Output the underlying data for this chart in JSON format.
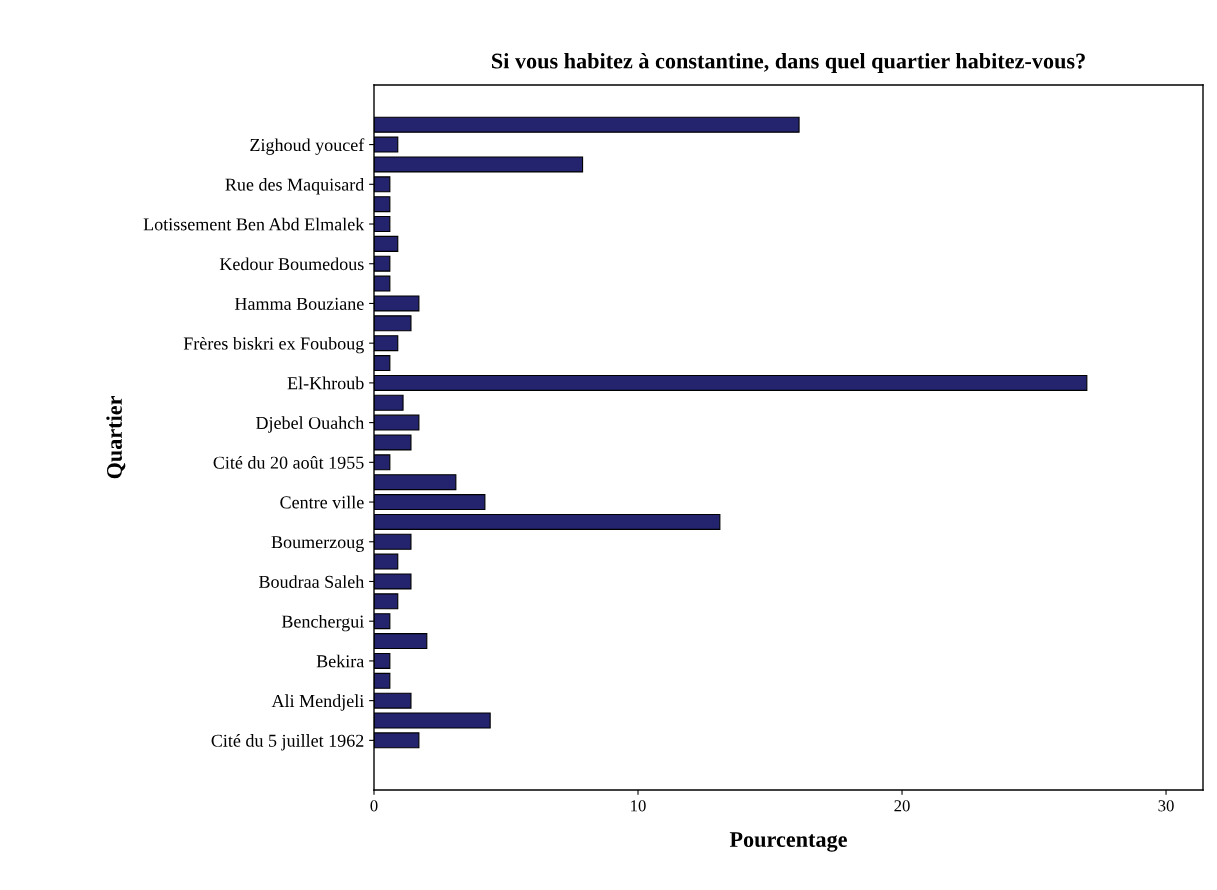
{
  "chart_data": {
    "type": "bar",
    "orientation": "horizontal",
    "title": "Si vous habitez à constantine, dans quel quartier habitez-vous?",
    "xlabel": "Pourcentage",
    "ylabel": "Quartier",
    "categories": [
      null,
      "Zighoud youcef",
      null,
      "Rue des Maquisard",
      null,
      "Lotissement Ben Abd Elmalek",
      null,
      "Kedour Boumedous",
      null,
      "Hamma Bouziane",
      null,
      "Frères biskri ex Fouboug",
      null,
      "El-Khroub",
      null,
      "Djebel Ouahch",
      null,
      "Cité du 20 août 1955",
      null,
      "Centre ville",
      null,
      "Boumerzoug",
      null,
      "Boudraa Saleh",
      null,
      "Benchergui",
      null,
      "Bekira",
      null,
      "Ali Mendjeli",
      null,
      "Cité du 5 juillet 1962"
    ],
    "values": [
      16.1,
      0.9,
      7.9,
      0.6,
      0.6,
      0.6,
      0.9,
      0.6,
      0.6,
      1.7,
      1.4,
      0.9,
      0.6,
      27.0,
      1.1,
      1.7,
      1.4,
      0.6,
      3.1,
      4.2,
      13.1,
      1.4,
      0.9,
      1.4,
      0.9,
      0.6,
      2.0,
      0.6,
      0.6,
      1.4,
      4.4,
      1.7
    ],
    "color": "#23236e",
    "xlim": [
      0,
      31.4
    ],
    "xticks": [
      0,
      10,
      20,
      30
    ],
    "grid": false,
    "legend": false
  }
}
